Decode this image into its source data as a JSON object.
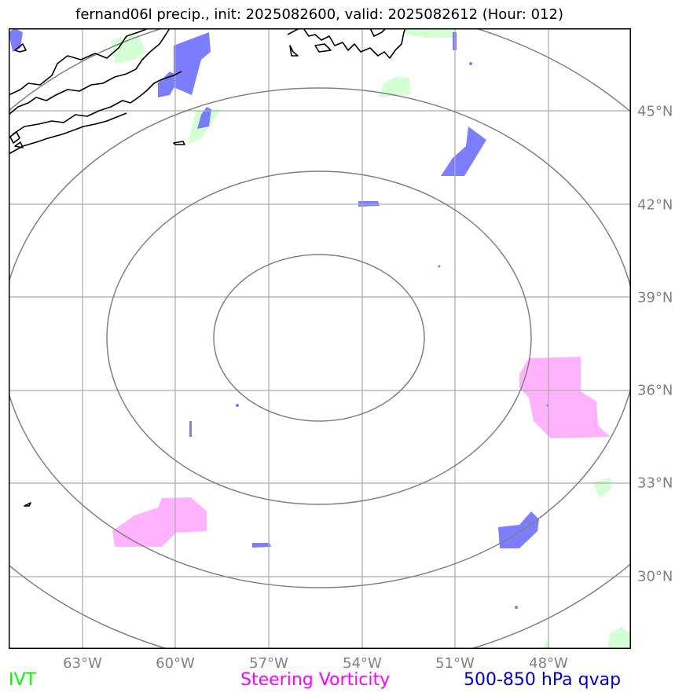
{
  "title": "fernand06l precip., init: 2025082600, valid: 2025082612 (Hour: 012)",
  "latitude_labels": [
    "45°N",
    "42°N",
    "39°N",
    "36°N",
    "33°N",
    "30°N"
  ],
  "longitude_labels": [
    "63°W",
    "60°W",
    "57°W",
    "54°W",
    "51°W",
    "48°W"
  ],
  "legend": {
    "ivt": {
      "label": "IVT",
      "color": "#00ff00"
    },
    "steering_vorticity": {
      "label": "Steering Vorticity",
      "color": "#ff00ff"
    },
    "qvap": {
      "label": "500-850 hPa qvap",
      "color": "#0000cc"
    }
  },
  "colors": {
    "gridline": "#aaaaaa",
    "range_rings": "#808080",
    "coastline": "#000000",
    "ivt_fill": "#ccffcc",
    "vorticity_fill": "#ffb3ff",
    "qvap_fill": "#6666ff"
  }
}
